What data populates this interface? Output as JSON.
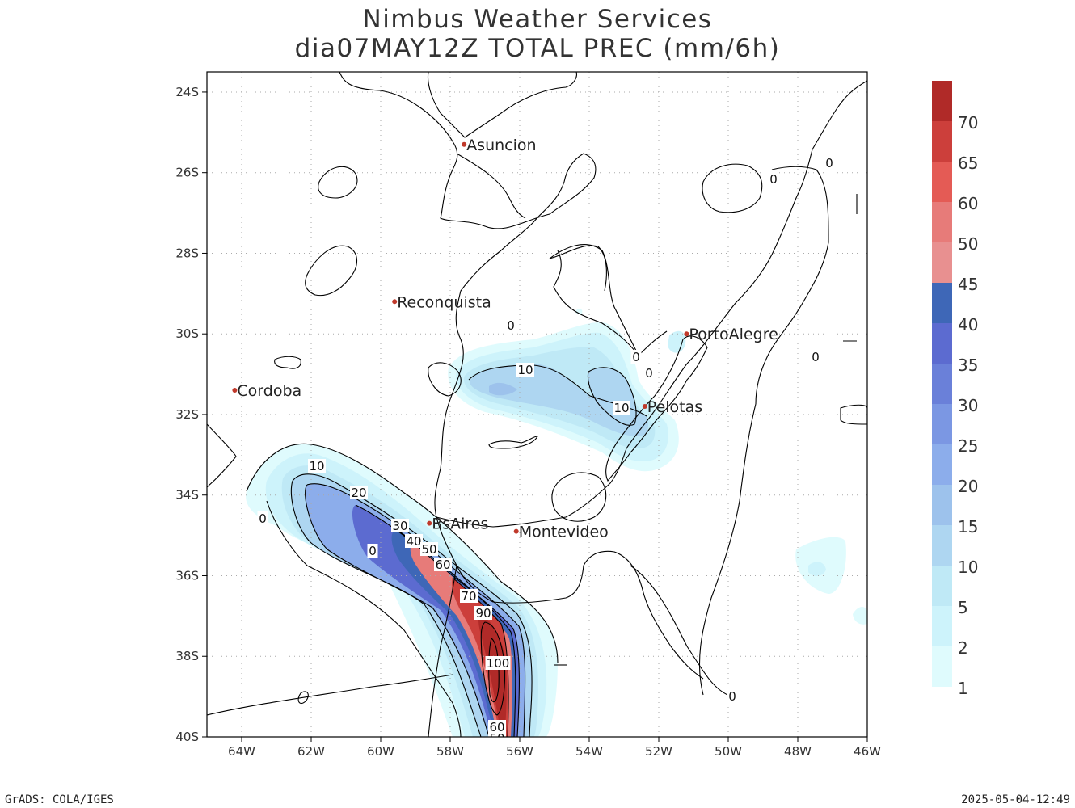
{
  "title": {
    "line1": "Nimbus Weather Services",
    "line2": "dia07MAY12Z TOTAL PREC (mm/6h)"
  },
  "map": {
    "lon_range": [
      -65,
      -46
    ],
    "lat_range": [
      -40,
      -23.5
    ],
    "lon_ticks": [
      "64W",
      "62W",
      "60W",
      "58W",
      "56W",
      "54W",
      "52W",
      "50W",
      "48W",
      "46W"
    ],
    "lat_ticks": [
      "24S",
      "26S",
      "28S",
      "30S",
      "32S",
      "34S",
      "36S",
      "38S",
      "40S"
    ],
    "cities": [
      {
        "name": "Asuncion",
        "lon": -57.6,
        "lat": -25.3
      },
      {
        "name": "Reconquista",
        "lon": -59.6,
        "lat": -29.2
      },
      {
        "name": "PortoAlegre",
        "lon": -51.2,
        "lat": -30.0
      },
      {
        "name": "Cordoba",
        "lon": -64.2,
        "lat": -31.4
      },
      {
        "name": "Pelotas",
        "lon": -52.4,
        "lat": -31.8
      },
      {
        "name": "BsAires",
        "lon": -58.6,
        "lat": -34.7
      },
      {
        "name": "Montevideo",
        "lon": -56.1,
        "lat": -34.9
      }
    ],
    "contour_labels": [
      "0",
      "0",
      "0",
      "0",
      "0",
      "0",
      "0",
      "0",
      "0",
      "10",
      "10",
      "10",
      "20",
      "30",
      "40",
      "50",
      "60",
      "70",
      "90",
      "100",
      "60",
      "50"
    ],
    "grid": true
  },
  "colorbar": {
    "labels": [
      "1",
      "2",
      "5",
      "10",
      "15",
      "20",
      "25",
      "30",
      "35",
      "40",
      "45",
      "50",
      "60",
      "65",
      "70"
    ],
    "colors": [
      "#dffbfd",
      "#cdf3fb",
      "#bfe9f6",
      "#aed6f1",
      "#9dc2ec",
      "#8cadeb",
      "#7b97e3",
      "#6a80d9",
      "#5c6bd0",
      "#3e67b7",
      "#e89090",
      "#e77b79",
      "#e45b55",
      "#cc3f3b",
      "#b02a28"
    ]
  },
  "footer": {
    "left": "GrADS: COLA/IGES",
    "right": "2025-05-04-12:49"
  }
}
